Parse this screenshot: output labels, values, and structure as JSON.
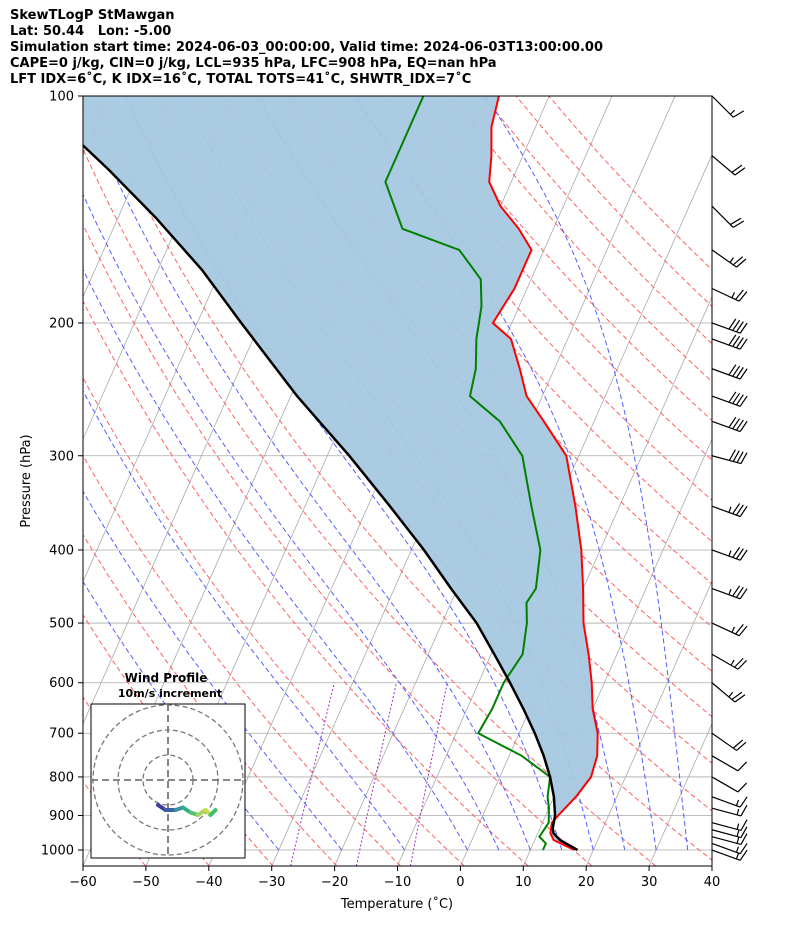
{
  "header": {
    "title": "SkewTLogP StMawgan",
    "location": "Lat: 50.44   Lon: -5.00",
    "times": "Simulation start time: 2024-06-03_00:00:00, Valid time: 2024-06-03T13:00:00.00",
    "params": "CAPE=0 j/kg, CIN=0 j/kg, LCL=935 hPa, LFC=908 hPa, EQ=nan hPa",
    "indices": "LFT IDX=6˚C, K IDX=16˚C, TOTAL TOTS=41˚C, SHWTR_IDX=7˚C"
  },
  "chart_data": {
    "type": "line",
    "xlabel": "Temperature (˚C)",
    "ylabel": "Pressure (hPa)",
    "xlim": [
      -60,
      40
    ],
    "ylim": [
      1050,
      100
    ],
    "y_scale": "log",
    "skew_per_decade_C": 53,
    "xticks": [
      -60,
      -50,
      -40,
      -30,
      -20,
      -10,
      0,
      10,
      20,
      30,
      40
    ],
    "xtick_labels": [
      "−60",
      "−50",
      "−40",
      "−30",
      "−20",
      "−10",
      "0",
      "10",
      "20",
      "30",
      "40"
    ],
    "yticks": [
      1000,
      900,
      800,
      700,
      600,
      500,
      400,
      300,
      200,
      100
    ],
    "ytick_labels": [
      "1000",
      "900",
      "800",
      "700",
      "600",
      "500",
      "400",
      "300",
      "200",
      "100"
    ],
    "grid": true,
    "colors": {
      "temperature": "#ff0000",
      "dewpoint": "#008000",
      "parcel": "#000000",
      "cape_fill": "#a6c8e0",
      "isotherms": "#aaaaaa",
      "dry_adiabats": "#ff6060",
      "moist_adiabats": "#5060ff",
      "mixing_ratio": "#9b30c0"
    },
    "series": [
      {
        "name": "Temperature",
        "points": [
          [
            17.0,
            1000
          ],
          [
            13.0,
            970
          ],
          [
            12.0,
            950
          ],
          [
            11.5,
            920
          ],
          [
            12.0,
            900
          ],
          [
            13.5,
            850
          ],
          [
            14.5,
            800
          ],
          [
            14.0,
            750
          ],
          [
            12.5,
            700
          ],
          [
            10.0,
            650
          ],
          [
            8.0,
            600
          ],
          [
            5.5,
            550
          ],
          [
            2.5,
            500
          ],
          [
            0.0,
            450
          ],
          [
            -3.0,
            400
          ],
          [
            -7.0,
            350
          ],
          [
            -12.0,
            300
          ],
          [
            -18.0,
            270
          ],
          [
            -22.5,
            250
          ],
          [
            -25.5,
            230
          ],
          [
            -29.0,
            210
          ],
          [
            -33.0,
            200
          ],
          [
            -32.0,
            180
          ],
          [
            -32.0,
            160
          ],
          [
            -35.5,
            150
          ],
          [
            -40.0,
            140
          ],
          [
            -43.5,
            130
          ],
          [
            -45.0,
            120
          ],
          [
            -47.0,
            110
          ],
          [
            -48.0,
            100
          ]
        ]
      },
      {
        "name": "Dewpoint",
        "points": [
          [
            12.0,
            1000
          ],
          [
            12.0,
            980
          ],
          [
            10.5,
            960
          ],
          [
            11.0,
            920
          ],
          [
            10.0,
            880
          ],
          [
            9.0,
            850
          ],
          [
            8.0,
            800
          ],
          [
            2.0,
            750
          ],
          [
            -6.5,
            700
          ],
          [
            -6.0,
            650
          ],
          [
            -6.0,
            600
          ],
          [
            -5.0,
            550
          ],
          [
            -6.5,
            500
          ],
          [
            -8.0,
            470
          ],
          [
            -7.5,
            450
          ],
          [
            -9.5,
            400
          ],
          [
            -14.0,
            350
          ],
          [
            -19.0,
            300
          ],
          [
            -25.0,
            270
          ],
          [
            -31.5,
            250
          ],
          [
            -32.5,
            230
          ],
          [
            -34.5,
            210
          ],
          [
            -36.0,
            190
          ],
          [
            -38.0,
            175
          ],
          [
            -43.5,
            160
          ],
          [
            -54.0,
            150
          ],
          [
            -60.0,
            130
          ],
          [
            -60.0,
            100
          ]
        ]
      },
      {
        "name": "Parcel",
        "points": [
          [
            17.5,
            1000
          ],
          [
            14.0,
            970
          ],
          [
            12.5,
            950
          ],
          [
            12.0,
            935
          ],
          [
            11.5,
            900
          ],
          [
            10.0,
            850
          ],
          [
            8.0,
            800
          ],
          [
            5.5,
            750
          ],
          [
            2.5,
            700
          ],
          [
            -1.0,
            650
          ],
          [
            -5.0,
            600
          ],
          [
            -9.5,
            550
          ],
          [
            -14.5,
            500
          ],
          [
            -21.0,
            450
          ],
          [
            -28.0,
            400
          ],
          [
            -36.5,
            350
          ],
          [
            -46.5,
            300
          ],
          [
            -59.0,
            250
          ],
          [
            -73.0,
            200
          ],
          [
            -83.0,
            170
          ],
          [
            -94.0,
            145
          ],
          [
            -105.0,
            125
          ],
          [
            -115.0,
            110
          ],
          [
            -122.0,
            100
          ]
        ]
      }
    ],
    "barbs": [
      {
        "pressure": 1000,
        "speed_kt": 15,
        "dir_deg": 250
      },
      {
        "pressure": 980,
        "speed_kt": 15,
        "dir_deg": 250
      },
      {
        "pressure": 960,
        "speed_kt": 15,
        "dir_deg": 255
      },
      {
        "pressure": 940,
        "speed_kt": 15,
        "dir_deg": 255
      },
      {
        "pressure": 920,
        "speed_kt": 15,
        "dir_deg": 255
      },
      {
        "pressure": 880,
        "speed_kt": 15,
        "dir_deg": 255
      },
      {
        "pressure": 850,
        "speed_kt": 15,
        "dir_deg": 250
      },
      {
        "pressure": 800,
        "speed_kt": 10,
        "dir_deg": 240
      },
      {
        "pressure": 750,
        "speed_kt": 10,
        "dir_deg": 240
      },
      {
        "pressure": 700,
        "speed_kt": 20,
        "dir_deg": 235
      },
      {
        "pressure": 600,
        "speed_kt": 25,
        "dir_deg": 230
      },
      {
        "pressure": 550,
        "speed_kt": 25,
        "dir_deg": 240
      },
      {
        "pressure": 500,
        "speed_kt": 25,
        "dir_deg": 245
      },
      {
        "pressure": 450,
        "speed_kt": 35,
        "dir_deg": 250
      },
      {
        "pressure": 400,
        "speed_kt": 35,
        "dir_deg": 250
      },
      {
        "pressure": 350,
        "speed_kt": 35,
        "dir_deg": 250
      },
      {
        "pressure": 300,
        "speed_kt": 40,
        "dir_deg": 255
      },
      {
        "pressure": 270,
        "speed_kt": 40,
        "dir_deg": 250
      },
      {
        "pressure": 250,
        "speed_kt": 40,
        "dir_deg": 250
      },
      {
        "pressure": 230,
        "speed_kt": 40,
        "dir_deg": 250
      },
      {
        "pressure": 210,
        "speed_kt": 40,
        "dir_deg": 250
      },
      {
        "pressure": 200,
        "speed_kt": 40,
        "dir_deg": 250
      },
      {
        "pressure": 180,
        "speed_kt": 25,
        "dir_deg": 245
      },
      {
        "pressure": 160,
        "speed_kt": 25,
        "dir_deg": 235
      },
      {
        "pressure": 140,
        "speed_kt": 20,
        "dir_deg": 225
      },
      {
        "pressure": 120,
        "speed_kt": 20,
        "dir_deg": 230
      },
      {
        "pressure": 100,
        "speed_kt": 15,
        "dir_deg": 225
      }
    ],
    "inset": {
      "title": "Wind Profile",
      "subtitle": "10m/s increment",
      "rings": 3,
      "hodograph": [
        [
          -0.2,
          -0.5
        ],
        [
          -0.05,
          -0.6
        ],
        [
          0.15,
          -0.6
        ],
        [
          0.3,
          -0.55
        ],
        [
          0.45,
          -0.65
        ],
        [
          0.6,
          -0.7
        ],
        [
          0.75,
          -0.6
        ],
        [
          0.85,
          -0.7
        ],
        [
          0.95,
          -0.6
        ]
      ]
    }
  }
}
